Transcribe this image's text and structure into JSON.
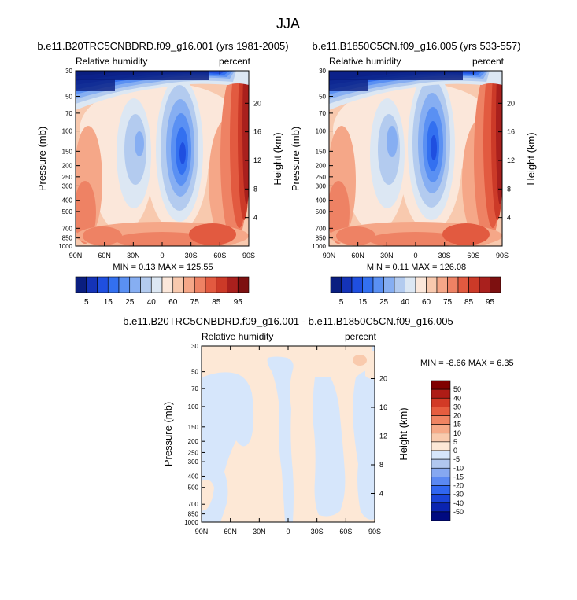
{
  "page": {
    "title": "JJA"
  },
  "colors": {
    "abs_bands": [
      "#0a1e80",
      "#1433b8",
      "#1f4fe0",
      "#3370f0",
      "#5a90f3",
      "#86aef2",
      "#b3cbef",
      "#dce7f3",
      "#fbe7da",
      "#f8c9ae",
      "#f5a788",
      "#ee8264",
      "#e25a40",
      "#cc3a28",
      "#a9201d",
      "#7d1010"
    ],
    "diff_bands": [
      "#000a80",
      "#0a24b0",
      "#1a44d8",
      "#3066f0",
      "#5a88f2",
      "#86a8f1",
      "#b1c7ef",
      "#d6e6fb",
      "#fde8d6",
      "#f9caad",
      "#f6a987",
      "#f08462",
      "#e65d3f",
      "#d23a26",
      "#ae1c16",
      "#800000"
    ]
  },
  "chart_data": [
    {
      "type": "heatmap",
      "title": "b.e11.B20TRC5CNBDRD.f09_g16.001 (yrs 1981-2005)",
      "left_label": "Relative humidity",
      "right_label": "percent",
      "ylabel": "Pressure (mb)",
      "y2label": "Height (km)",
      "x_ticks": [
        "90N",
        "60N",
        "30N",
        "0",
        "30S",
        "60S",
        "90S"
      ],
      "y_ticks": [
        "30",
        "50",
        "70",
        "100",
        "150",
        "200",
        "250",
        "300",
        "400",
        "500",
        "700",
        "850",
        "1000"
      ],
      "y2_ticks": [
        "20",
        "16",
        "12",
        "8",
        "4"
      ],
      "stats": "MIN =  0.13  MAX = 125.55",
      "colorbar_labels": [
        "5",
        "15",
        "25",
        "40",
        "60",
        "75",
        "85",
        "95"
      ]
    },
    {
      "type": "heatmap",
      "title": "b.e11.B1850C5CN.f09_g16.005 (yrs 533-557)",
      "left_label": "Relative humidity",
      "right_label": "percent",
      "ylabel": "Pressure (mb)",
      "y2label": "Height (km)",
      "x_ticks": [
        "90N",
        "60N",
        "30N",
        "0",
        "30S",
        "60S",
        "90S"
      ],
      "y_ticks": [
        "30",
        "50",
        "70",
        "100",
        "150",
        "200",
        "250",
        "300",
        "400",
        "500",
        "700",
        "850",
        "1000"
      ],
      "y2_ticks": [
        "20",
        "16",
        "12",
        "8",
        "4"
      ],
      "stats": "MIN =  0.11  MAX = 126.08",
      "colorbar_labels": [
        "5",
        "15",
        "25",
        "40",
        "60",
        "75",
        "85",
        "95"
      ]
    },
    {
      "type": "heatmap",
      "title": "b.e11.B20TRC5CNBDRD.f09_g16.001 - b.e11.B1850C5CN.f09_g16.005",
      "left_label": "Relative humidity",
      "right_label": "percent",
      "ylabel": "Pressure (mb)",
      "y2label": "Height (km)",
      "x_ticks": [
        "90N",
        "60N",
        "30N",
        "0",
        "30S",
        "60S",
        "90S"
      ],
      "y_ticks": [
        "30",
        "50",
        "70",
        "100",
        "150",
        "200",
        "250",
        "300",
        "400",
        "500",
        "700",
        "850",
        "1000"
      ],
      "y2_ticks": [
        "20",
        "16",
        "12",
        "8",
        "4"
      ],
      "stats": "MIN = -8.66  MAX =  6.35",
      "colorbar_labels": [
        "50",
        "40",
        "30",
        "20",
        "15",
        "10",
        "5",
        "0",
        "-5",
        "-10",
        "-15",
        "-20",
        "-30",
        "-40",
        "-50"
      ]
    }
  ]
}
